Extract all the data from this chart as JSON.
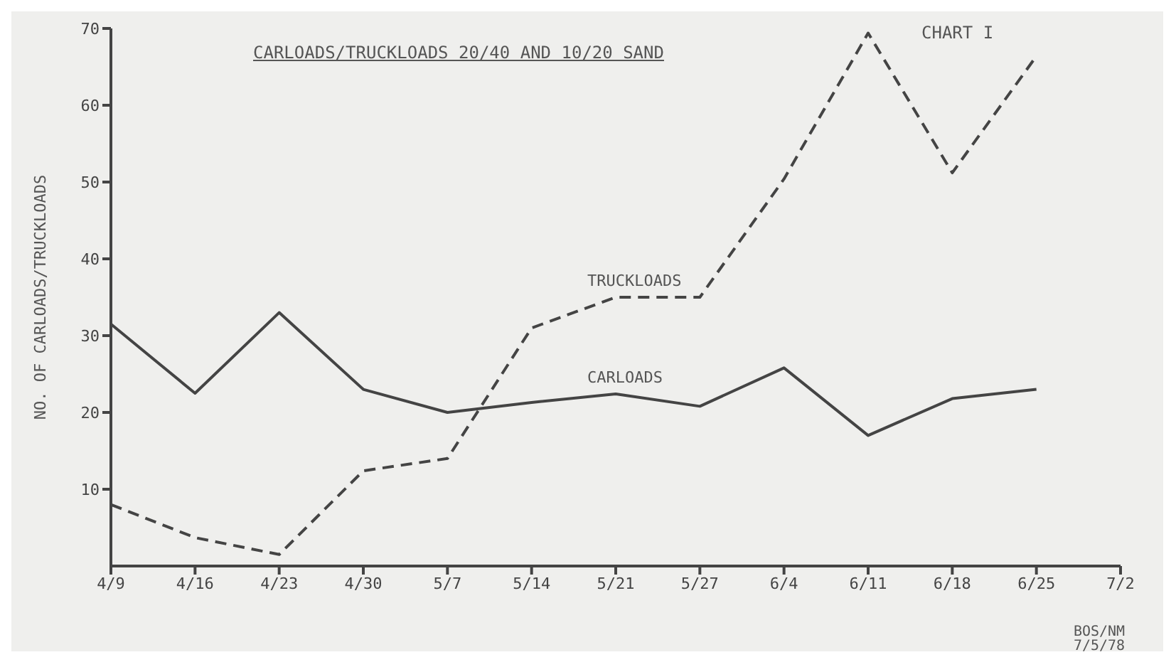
{
  "chart_data": {
    "type": "line",
    "title": "CARLOADS/TRUCKLOADS 20/40 AND 10/20 SAND",
    "subtitle": "CHART I",
    "ylabel": "NO. OF CARLOADS/TRUCKLOADS",
    "annotations": [
      "BOS/NM 7/5/78"
    ],
    "categories": [
      "4/9",
      "4/16",
      "4/23",
      "4/30",
      "5/7",
      "5/14",
      "5/21",
      "5/27",
      "6/4",
      "6/11",
      "6/18",
      "6/25",
      "7/2"
    ],
    "series": [
      {
        "name": "CARLOADS",
        "color": "#444444",
        "line_style": "solid",
        "values": [
          31.5,
          22.5,
          33,
          23,
          20,
          21.3,
          22.4,
          20.8,
          25.8,
          17,
          21.8,
          23,
          null
        ]
      },
      {
        "name": "TRUCKLOADS",
        "color": "#444444",
        "line_style": "dashed",
        "values": [
          8,
          3.7,
          1.5,
          12.4,
          14,
          31,
          35,
          35,
          50.4,
          69.4,
          51.2,
          66.4,
          null
        ]
      }
    ],
    "ylim": [
      0,
      70
    ],
    "yticks": [
      10,
      20,
      30,
      40,
      50,
      60,
      70
    ],
    "grid": false,
    "legend": false,
    "marker": "none"
  }
}
